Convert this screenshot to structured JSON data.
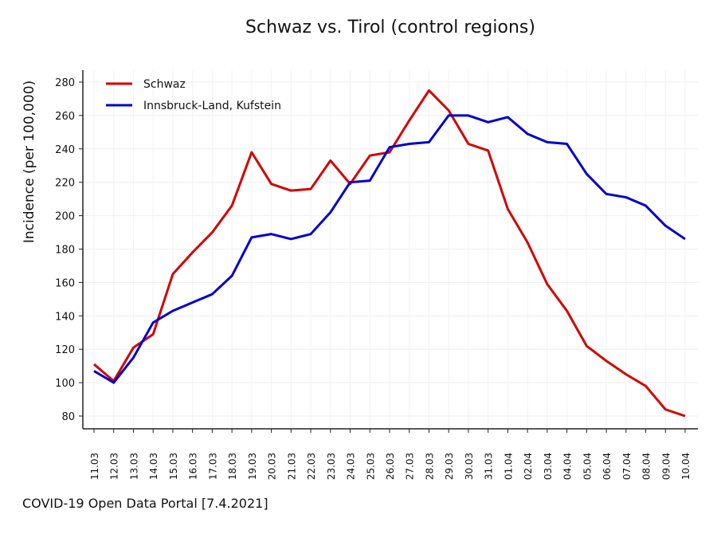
{
  "chart_data": {
    "type": "line",
    "title": "Schwaz vs. Tirol (control regions)",
    "xlabel": "",
    "ylabel": "Incidence (per 100,000)",
    "ylim": [
      70,
      285
    ],
    "yticks": [
      80,
      100,
      120,
      140,
      160,
      180,
      200,
      220,
      240,
      260,
      280
    ],
    "grid": true,
    "legend_position": "top-left",
    "categories": [
      "11.03",
      "12.03",
      "13.03",
      "14.03",
      "15.03",
      "16.03",
      "17.03",
      "18.03",
      "19.03",
      "20.03",
      "21.03",
      "22.03",
      "23.03",
      "24.03",
      "25.03",
      "26.03",
      "27.03",
      "28.03",
      "29.03",
      "30.03",
      "31.03",
      "01.04",
      "02.04",
      "03.04",
      "04.04",
      "05.04",
      "06.04",
      "07.04",
      "08.04",
      "09.04",
      "10.04"
    ],
    "series": [
      {
        "name": "Schwaz",
        "color": "#d40000",
        "values": [
          111,
          101,
          121,
          129,
          165,
          178,
          190,
          206,
          238,
          219,
          215,
          216,
          233,
          219,
          236,
          238,
          257,
          275,
          263,
          243,
          239,
          204,
          184,
          159,
          143,
          122,
          113,
          105,
          98,
          84,
          80
        ]
      },
      {
        "name": "Innsbruck-Land, Kufstein",
        "color": "#0000d0",
        "values": [
          107,
          100,
          115,
          136,
          143,
          148,
          153,
          164,
          187,
          189,
          186,
          189,
          202,
          220,
          221,
          241,
          243,
          244,
          260,
          260,
          256,
          259,
          249,
          244,
          243,
          225,
          213,
          211,
          206,
          194,
          186
        ]
      }
    ]
  },
  "source": "COVID-19 Open Data Portal [7.4.2021]"
}
